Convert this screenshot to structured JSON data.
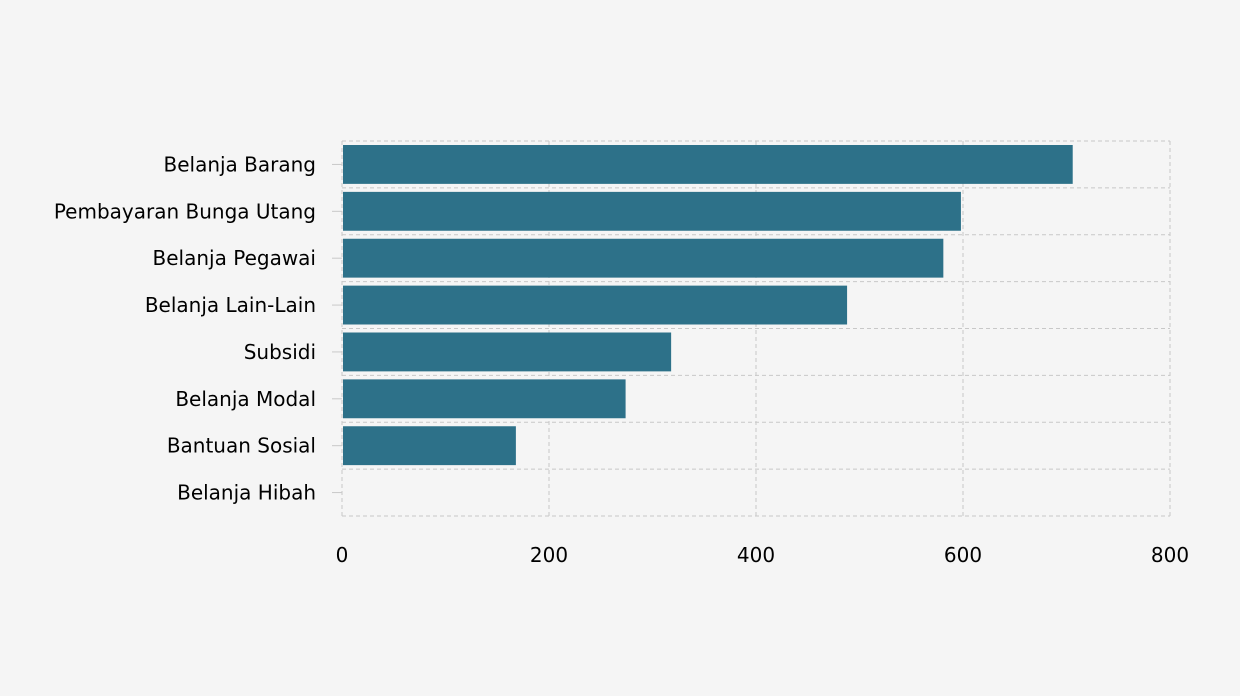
{
  "chart_data": {
    "type": "bar",
    "orientation": "horizontal",
    "title": "",
    "xlabel": "",
    "ylabel": "",
    "categories": [
      "Belanja Barang",
      "Pembayaran Bunga Utang",
      "Belanja Pegawai",
      "Belanja Lain-Lain",
      "Subsidi",
      "Belanja Modal",
      "Bantuan Sosial",
      "Belanja Hibah"
    ],
    "values": [
      706,
      598,
      581,
      488,
      318,
      274,
      168,
      0
    ],
    "xlim": [
      0,
      800
    ],
    "xticks": [
      0,
      200,
      400,
      600,
      800
    ],
    "grid": true,
    "bar_color": "#2d7189"
  }
}
